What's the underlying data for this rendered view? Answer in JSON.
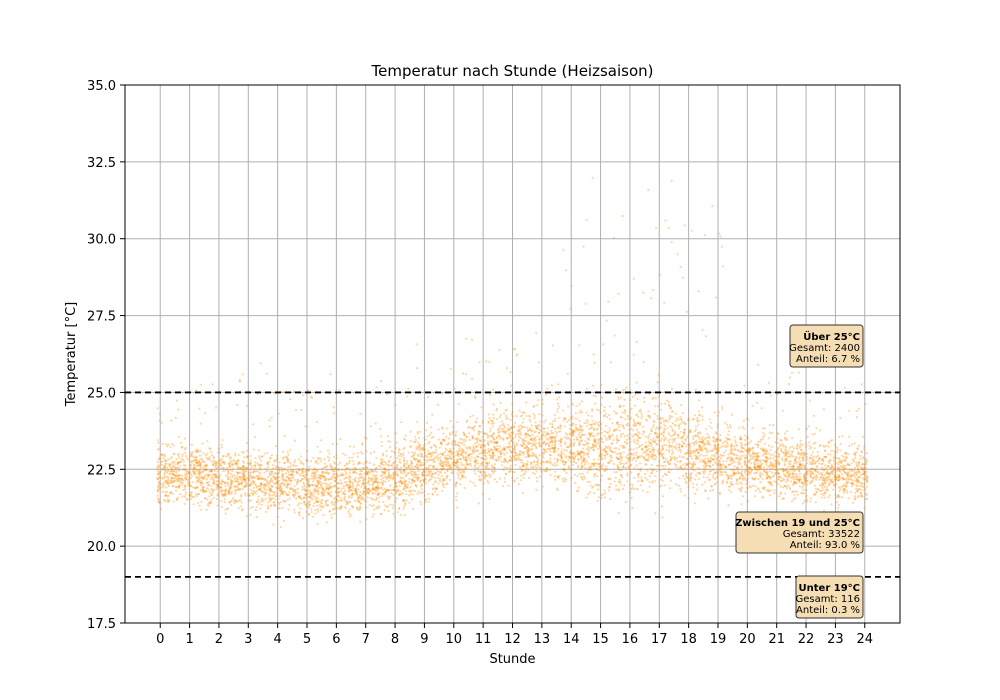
{
  "chart_data": {
    "type": "scatter",
    "title": "Temperatur nach Stunde (Heizsaison)",
    "xlabel": "Stunde",
    "ylabel": "Temperatur [°C]",
    "xlim": [
      -1.2,
      25.2
    ],
    "ylim": [
      17.5,
      35.0
    ],
    "x_ticks": [
      "0",
      "1",
      "2",
      "3",
      "4",
      "5",
      "6",
      "7",
      "8",
      "9",
      "10",
      "11",
      "12",
      "13",
      "14",
      "15",
      "16",
      "17",
      "18",
      "19",
      "20",
      "21",
      "22",
      "23",
      "24"
    ],
    "y_ticks": [
      "17.5",
      "20.0",
      "22.5",
      "25.0",
      "27.5",
      "30.0",
      "32.5",
      "35.0"
    ],
    "grid": true,
    "point_color": "#ff8c00",
    "threshold_lines": [
      19,
      25
    ],
    "hourly_summary": [
      {
        "hour": 0,
        "median": 22.3,
        "spread": 0.9
      },
      {
        "hour": 1,
        "median": 22.3,
        "spread": 0.9
      },
      {
        "hour": 2,
        "median": 22.2,
        "spread": 0.9
      },
      {
        "hour": 3,
        "median": 22.2,
        "spread": 0.9
      },
      {
        "hour": 4,
        "median": 22.1,
        "spread": 0.9
      },
      {
        "hour": 5,
        "median": 22.0,
        "spread": 0.9
      },
      {
        "hour": 6,
        "median": 22.0,
        "spread": 1.0
      },
      {
        "hour": 7,
        "median": 22.0,
        "spread": 0.9
      },
      {
        "hour": 8,
        "median": 22.2,
        "spread": 1.0
      },
      {
        "hour": 9,
        "median": 22.6,
        "spread": 1.0
      },
      {
        "hour": 10,
        "median": 22.9,
        "spread": 1.0
      },
      {
        "hour": 11,
        "median": 23.1,
        "spread": 1.1
      },
      {
        "hour": 12,
        "median": 23.3,
        "spread": 1.1
      },
      {
        "hour": 13,
        "median": 23.3,
        "spread": 1.1
      },
      {
        "hour": 14,
        "median": 23.2,
        "spread": 1.2
      },
      {
        "hour": 15,
        "median": 23.2,
        "spread": 1.4
      },
      {
        "hour": 16,
        "median": 23.3,
        "spread": 1.6
      },
      {
        "hour": 17,
        "median": 23.4,
        "spread": 1.5
      },
      {
        "hour": 18,
        "median": 23.1,
        "spread": 1.2
      },
      {
        "hour": 19,
        "median": 22.9,
        "spread": 1.1
      },
      {
        "hour": 20,
        "median": 22.7,
        "spread": 1.0
      },
      {
        "hour": 21,
        "median": 22.6,
        "spread": 0.9
      },
      {
        "hour": 22,
        "median": 22.5,
        "spread": 0.9
      },
      {
        "hour": 23,
        "median": 22.4,
        "spread": 0.9
      },
      {
        "hour": 24,
        "median": 22.4,
        "spread": 0.9
      }
    ],
    "annotations": [
      {
        "title": "Über 25°C",
        "line1": "Gesamt: 2400",
        "line2": "Anteil: 6.7 %"
      },
      {
        "title": "Zwischen 19 und 25°C",
        "line1": "Gesamt: 33522",
        "line2": "Anteil: 93.0 %"
      },
      {
        "title": "Unter 19°C",
        "line1": "Gesamt: 116",
        "line2": "Anteil: 0.3 %"
      }
    ],
    "annotation_box_color": "#f5deb3"
  }
}
